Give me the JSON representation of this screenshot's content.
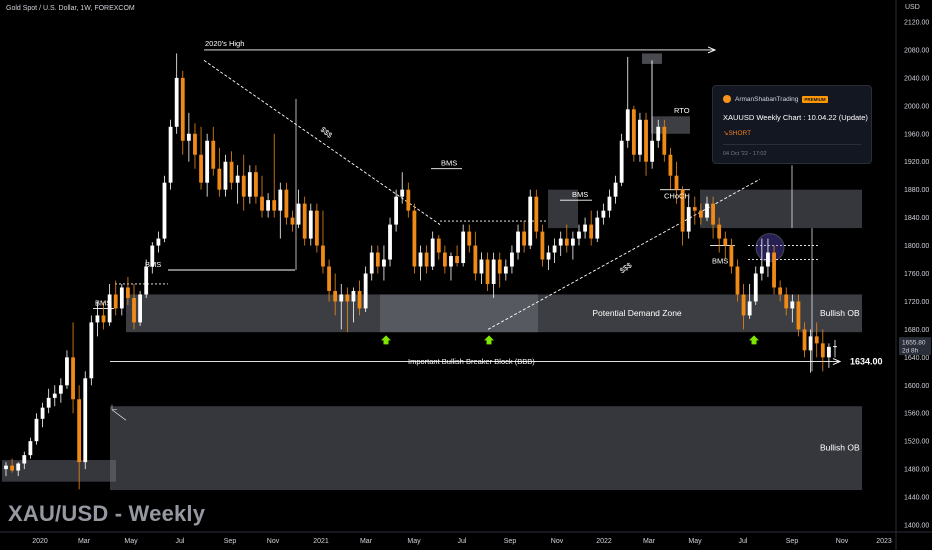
{
  "header": {
    "symbol_title": "Gold Spot / U.S. Dollar, 1W, FOREXCOM",
    "currency": "USD",
    "watermark": "XAU/USD - Weekly"
  },
  "chart_data": {
    "type": "candlestick",
    "x_ticks": [
      "2020",
      "Mar",
      "May",
      "Jul",
      "Sep",
      "Nov",
      "2021",
      "Mar",
      "May",
      "Jul",
      "Sep",
      "Nov",
      "2022",
      "Mar",
      "May",
      "Jul",
      "Sep",
      "Nov",
      "2023"
    ],
    "y_ticks": [
      1400,
      1440,
      1480,
      1520,
      1560,
      1600,
      1640,
      1680,
      1720,
      1760,
      1800,
      1840,
      1880,
      1920,
      1960,
      2000,
      2040,
      2080,
      2120
    ],
    "ylim": [
      1395,
      2155
    ],
    "price_label": {
      "value": "1655.80",
      "countdown": "2d 8h"
    },
    "series": [
      {
        "o": 1480,
        "h": 1490,
        "l": 1470,
        "c": 1485
      },
      {
        "o": 1485,
        "h": 1495,
        "l": 1475,
        "c": 1478
      },
      {
        "o": 1478,
        "h": 1490,
        "l": 1470,
        "c": 1488
      },
      {
        "o": 1488,
        "h": 1505,
        "l": 1480,
        "c": 1500
      },
      {
        "o": 1500,
        "h": 1525,
        "l": 1495,
        "c": 1520
      },
      {
        "o": 1520,
        "h": 1560,
        "l": 1515,
        "c": 1552
      },
      {
        "o": 1552,
        "h": 1575,
        "l": 1540,
        "c": 1568
      },
      {
        "o": 1568,
        "h": 1595,
        "l": 1560,
        "c": 1582
      },
      {
        "o": 1582,
        "h": 1600,
        "l": 1570,
        "c": 1588
      },
      {
        "o": 1588,
        "h": 1610,
        "l": 1575,
        "c": 1600
      },
      {
        "o": 1600,
        "h": 1650,
        "l": 1595,
        "c": 1640
      },
      {
        "o": 1640,
        "h": 1690,
        "l": 1560,
        "c": 1580
      },
      {
        "o": 1580,
        "h": 1600,
        "l": 1451,
        "c": 1490
      },
      {
        "o": 1490,
        "h": 1620,
        "l": 1480,
        "c": 1610
      },
      {
        "o": 1610,
        "h": 1700,
        "l": 1600,
        "c": 1690
      },
      {
        "o": 1690,
        "h": 1720,
        "l": 1670,
        "c": 1700
      },
      {
        "o": 1700,
        "h": 1720,
        "l": 1680,
        "c": 1690
      },
      {
        "o": 1690,
        "h": 1745,
        "l": 1685,
        "c": 1730
      },
      {
        "o": 1730,
        "h": 1750,
        "l": 1700,
        "c": 1710
      },
      {
        "o": 1710,
        "h": 1745,
        "l": 1700,
        "c": 1740
      },
      {
        "o": 1740,
        "h": 1755,
        "l": 1715,
        "c": 1725
      },
      {
        "o": 1725,
        "h": 1745,
        "l": 1680,
        "c": 1690
      },
      {
        "o": 1690,
        "h": 1735,
        "l": 1685,
        "c": 1730
      },
      {
        "o": 1730,
        "h": 1780,
        "l": 1725,
        "c": 1770
      },
      {
        "o": 1770,
        "h": 1805,
        "l": 1760,
        "c": 1800
      },
      {
        "o": 1800,
        "h": 1820,
        "l": 1790,
        "c": 1810
      },
      {
        "o": 1810,
        "h": 1900,
        "l": 1805,
        "c": 1890
      },
      {
        "o": 1890,
        "h": 1980,
        "l": 1880,
        "c": 1970
      },
      {
        "o": 1970,
        "h": 2075,
        "l": 1960,
        "c": 2040
      },
      {
        "o": 2040,
        "h": 2050,
        "l": 1930,
        "c": 1950
      },
      {
        "o": 1950,
        "h": 1990,
        "l": 1920,
        "c": 1960
      },
      {
        "o": 1960,
        "h": 1975,
        "l": 1910,
        "c": 1930
      },
      {
        "o": 1930,
        "h": 1970,
        "l": 1880,
        "c": 1890
      },
      {
        "o": 1890,
        "h": 1960,
        "l": 1870,
        "c": 1950
      },
      {
        "o": 1950,
        "h": 1970,
        "l": 1900,
        "c": 1910
      },
      {
        "o": 1910,
        "h": 1940,
        "l": 1870,
        "c": 1880
      },
      {
        "o": 1880,
        "h": 1930,
        "l": 1870,
        "c": 1920
      },
      {
        "o": 1920,
        "h": 1935,
        "l": 1880,
        "c": 1890
      },
      {
        "o": 1890,
        "h": 1915,
        "l": 1860,
        "c": 1900
      },
      {
        "o": 1900,
        "h": 1930,
        "l": 1850,
        "c": 1870
      },
      {
        "o": 1870,
        "h": 1915,
        "l": 1860,
        "c": 1905
      },
      {
        "o": 1905,
        "h": 1915,
        "l": 1860,
        "c": 1870
      },
      {
        "o": 1870,
        "h": 1900,
        "l": 1840,
        "c": 1850
      },
      {
        "o": 1850,
        "h": 1875,
        "l": 1840,
        "c": 1865
      },
      {
        "o": 1865,
        "h": 1960,
        "l": 1840,
        "c": 1850
      },
      {
        "o": 1850,
        "h": 1890,
        "l": 1810,
        "c": 1880
      },
      {
        "o": 1880,
        "h": 1890,
        "l": 1830,
        "c": 1840
      },
      {
        "o": 1840,
        "h": 1850,
        "l": 1820,
        "c": 1830
      },
      {
        "o": 1830,
        "h": 1880,
        "l": 1825,
        "c": 1860
      },
      {
        "o": 1860,
        "h": 1870,
        "l": 1800,
        "c": 1810
      },
      {
        "o": 1810,
        "h": 1860,
        "l": 1800,
        "c": 1850
      },
      {
        "o": 1850,
        "h": 1860,
        "l": 1790,
        "c": 1800
      },
      {
        "o": 1800,
        "h": 1850,
        "l": 1760,
        "c": 1770
      },
      {
        "o": 1770,
        "h": 1780,
        "l": 1720,
        "c": 1735
      },
      {
        "o": 1735,
        "h": 1760,
        "l": 1700,
        "c": 1720
      },
      {
        "o": 1720,
        "h": 1745,
        "l": 1680,
        "c": 1730
      },
      {
        "o": 1730,
        "h": 1740,
        "l": 1676,
        "c": 1720
      },
      {
        "o": 1720,
        "h": 1740,
        "l": 1690,
        "c": 1735
      },
      {
        "o": 1735,
        "h": 1750,
        "l": 1700,
        "c": 1710
      },
      {
        "o": 1710,
        "h": 1770,
        "l": 1705,
        "c": 1760
      },
      {
        "o": 1760,
        "h": 1800,
        "l": 1750,
        "c": 1790
      },
      {
        "o": 1790,
        "h": 1800,
        "l": 1760,
        "c": 1770
      },
      {
        "o": 1770,
        "h": 1800,
        "l": 1750,
        "c": 1780
      },
      {
        "o": 1780,
        "h": 1840,
        "l": 1770,
        "c": 1830
      },
      {
        "o": 1830,
        "h": 1880,
        "l": 1820,
        "c": 1870
      },
      {
        "o": 1870,
        "h": 1905,
        "l": 1860,
        "c": 1880
      },
      {
        "o": 1880,
        "h": 1890,
        "l": 1840,
        "c": 1850
      },
      {
        "o": 1850,
        "h": 1860,
        "l": 1760,
        "c": 1770
      },
      {
        "o": 1770,
        "h": 1800,
        "l": 1750,
        "c": 1790
      },
      {
        "o": 1790,
        "h": 1800,
        "l": 1760,
        "c": 1770
      },
      {
        "o": 1770,
        "h": 1820,
        "l": 1765,
        "c": 1810
      },
      {
        "o": 1810,
        "h": 1815,
        "l": 1780,
        "c": 1790
      },
      {
        "o": 1790,
        "h": 1800,
        "l": 1760,
        "c": 1770
      },
      {
        "o": 1770,
        "h": 1790,
        "l": 1750,
        "c": 1785
      },
      {
        "o": 1785,
        "h": 1800,
        "l": 1770,
        "c": 1775
      },
      {
        "o": 1775,
        "h": 1830,
        "l": 1770,
        "c": 1820
      },
      {
        "o": 1820,
        "h": 1830,
        "l": 1790,
        "c": 1800
      },
      {
        "o": 1800,
        "h": 1820,
        "l": 1750,
        "c": 1760
      },
      {
        "o": 1760,
        "h": 1790,
        "l": 1745,
        "c": 1780
      },
      {
        "o": 1780,
        "h": 1790,
        "l": 1735,
        "c": 1745
      },
      {
        "o": 1745,
        "h": 1790,
        "l": 1725,
        "c": 1780
      },
      {
        "o": 1780,
        "h": 1790,
        "l": 1740,
        "c": 1760
      },
      {
        "o": 1760,
        "h": 1780,
        "l": 1750,
        "c": 1770
      },
      {
        "o": 1770,
        "h": 1800,
        "l": 1760,
        "c": 1790
      },
      {
        "o": 1790,
        "h": 1830,
        "l": 1780,
        "c": 1820
      },
      {
        "o": 1820,
        "h": 1835,
        "l": 1790,
        "c": 1800
      },
      {
        "o": 1800,
        "h": 1880,
        "l": 1795,
        "c": 1870
      },
      {
        "o": 1870,
        "h": 1880,
        "l": 1810,
        "c": 1820
      },
      {
        "o": 1820,
        "h": 1830,
        "l": 1770,
        "c": 1780
      },
      {
        "o": 1780,
        "h": 1800,
        "l": 1765,
        "c": 1790
      },
      {
        "o": 1790,
        "h": 1810,
        "l": 1775,
        "c": 1800
      },
      {
        "o": 1800,
        "h": 1820,
        "l": 1785,
        "c": 1810
      },
      {
        "o": 1810,
        "h": 1830,
        "l": 1790,
        "c": 1800
      },
      {
        "o": 1800,
        "h": 1820,
        "l": 1780,
        "c": 1810
      },
      {
        "o": 1810,
        "h": 1830,
        "l": 1800,
        "c": 1820
      },
      {
        "o": 1820,
        "h": 1840,
        "l": 1810,
        "c": 1830
      },
      {
        "o": 1830,
        "h": 1850,
        "l": 1800,
        "c": 1810
      },
      {
        "o": 1810,
        "h": 1850,
        "l": 1805,
        "c": 1840
      },
      {
        "o": 1840,
        "h": 1860,
        "l": 1830,
        "c": 1850
      },
      {
        "o": 1850,
        "h": 1880,
        "l": 1840,
        "c": 1870
      },
      {
        "o": 1870,
        "h": 1900,
        "l": 1860,
        "c": 1890
      },
      {
        "o": 1890,
        "h": 1960,
        "l": 1885,
        "c": 1950
      },
      {
        "o": 1950,
        "h": 2070,
        "l": 1940,
        "c": 1995
      },
      {
        "o": 1995,
        "h": 2000,
        "l": 1920,
        "c": 1930
      },
      {
        "o": 1930,
        "h": 1990,
        "l": 1920,
        "c": 1980
      },
      {
        "o": 1980,
        "h": 1990,
        "l": 1900,
        "c": 1920
      },
      {
        "o": 1920,
        "h": 1960,
        "l": 1910,
        "c": 1950
      },
      {
        "o": 1950,
        "h": 1980,
        "l": 1940,
        "c": 1970
      },
      {
        "o": 1970,
        "h": 1980,
        "l": 1920,
        "c": 1930
      },
      {
        "o": 1930,
        "h": 1940,
        "l": 1880,
        "c": 1900
      },
      {
        "o": 1900,
        "h": 1920,
        "l": 1860,
        "c": 1880
      },
      {
        "o": 1880,
        "h": 1885,
        "l": 1800,
        "c": 1820
      },
      {
        "o": 1820,
        "h": 1870,
        "l": 1810,
        "c": 1855
      },
      {
        "o": 1855,
        "h": 1870,
        "l": 1830,
        "c": 1850
      },
      {
        "o": 1850,
        "h": 1860,
        "l": 1830,
        "c": 1840
      },
      {
        "o": 1840,
        "h": 1870,
        "l": 1835,
        "c": 1860
      },
      {
        "o": 1860,
        "h": 1870,
        "l": 1810,
        "c": 1830
      },
      {
        "o": 1830,
        "h": 1840,
        "l": 1790,
        "c": 1810
      },
      {
        "o": 1810,
        "h": 1820,
        "l": 1780,
        "c": 1800
      },
      {
        "o": 1800,
        "h": 1810,
        "l": 1760,
        "c": 1770
      },
      {
        "o": 1770,
        "h": 1780,
        "l": 1720,
        "c": 1730
      },
      {
        "o": 1730,
        "h": 1745,
        "l": 1680,
        "c": 1700
      },
      {
        "o": 1700,
        "h": 1745,
        "l": 1695,
        "c": 1720
      },
      {
        "o": 1720,
        "h": 1770,
        "l": 1715,
        "c": 1760
      },
      {
        "o": 1760,
        "h": 1810,
        "l": 1750,
        "c": 1770
      },
      {
        "o": 1770,
        "h": 1810,
        "l": 1755,
        "c": 1790
      },
      {
        "o": 1790,
        "h": 1800,
        "l": 1730,
        "c": 1740
      },
      {
        "o": 1740,
        "h": 1750,
        "l": 1720,
        "c": 1730
      },
      {
        "o": 1730,
        "h": 1740,
        "l": 1700,
        "c": 1710
      },
      {
        "o": 1710,
        "h": 1730,
        "l": 1690,
        "c": 1720
      },
      {
        "o": 1720,
        "h": 1730,
        "l": 1670,
        "c": 1680
      },
      {
        "o": 1680,
        "h": 1690,
        "l": 1640,
        "c": 1650
      },
      {
        "o": 1650,
        "h": 1680,
        "l": 1618,
        "c": 1670
      },
      {
        "o": 1670,
        "h": 1690,
        "l": 1640,
        "c": 1660
      },
      {
        "o": 1660,
        "h": 1680,
        "l": 1620,
        "c": 1640
      },
      {
        "o": 1640,
        "h": 1660,
        "l": 1625,
        "c": 1655
      },
      {
        "o": 1655,
        "h": 1665,
        "l": 1640,
        "c": 1656
      }
    ],
    "zones": [
      {
        "label": "Potential Demand Zone",
        "top": 1730,
        "bottom": 1676
      },
      {
        "label": "Bullish OB",
        "top": 1730,
        "bottom": 1676
      },
      {
        "label": "Bullish OB",
        "top": 1570,
        "bottom": 1450
      },
      {
        "label": "",
        "top": 1880,
        "bottom": 1825
      }
    ],
    "annotations": {
      "high_2020": "2020's High",
      "sss_left": "$$$",
      "sss_right": "$$$",
      "bms": "BMS",
      "rto": "RTO",
      "choch": "CHoCH",
      "bbb": "Important Bullish Breaker Block (BBB)",
      "level_value": "1634.00",
      "demand_zone": "Potential Demand Zone",
      "ob_upper": "Bullish OB",
      "ob_lower": "Bullish OB"
    },
    "colors": {
      "bull": "#ffffff",
      "bear": "#ef8a17",
      "zone": "#787b86",
      "background": "#000000"
    }
  },
  "idea_card": {
    "author": "ArmanShabanTrading",
    "badge": "PREMIUM",
    "title": "XAUUSD Weekly Chart : 10.04.22 (Update)",
    "signal": "↘SHORT",
    "timestamp": "04 Oct '22 - 17:02"
  }
}
